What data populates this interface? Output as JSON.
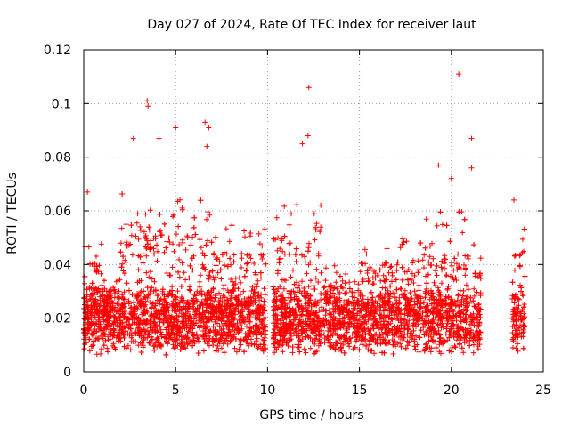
{
  "chart_data": {
    "type": "scatter",
    "title": "Day 027 of 2024, Rate Of TEC Index for receiver laut",
    "xlabel": "GPS time / hours",
    "ylabel": "ROTI / TECUs",
    "xlim": [
      0,
      25
    ],
    "ylim": [
      0,
      0.12
    ],
    "x_ticks": [
      0,
      5,
      10,
      15,
      20,
      25
    ],
    "x_tick_labels": [
      "0",
      "5",
      "10",
      "15",
      "20",
      "25"
    ],
    "y_ticks": [
      0,
      0.02,
      0.04,
      0.06,
      0.08,
      0.1,
      0.12
    ],
    "y_tick_labels": [
      "0",
      "0.02",
      "0.04",
      "0.06",
      "0.08",
      "0.1",
      "0.12"
    ],
    "grid": true,
    "marker": "+",
    "series_color": "#ff0000",
    "data_coverage": [
      [
        0.0,
        9.9
      ],
      [
        10.3,
        21.6
      ],
      [
        23.3,
        24.0
      ]
    ],
    "outliers": [
      {
        "x": 3.45,
        "y": 0.101
      },
      {
        "x": 3.5,
        "y": 0.099
      },
      {
        "x": 5.0,
        "y": 0.091
      },
      {
        "x": 6.6,
        "y": 0.093
      },
      {
        "x": 6.8,
        "y": 0.091
      },
      {
        "x": 12.25,
        "y": 0.106
      },
      {
        "x": 20.4,
        "y": 0.111
      },
      {
        "x": 2.7,
        "y": 0.087
      },
      {
        "x": 4.1,
        "y": 0.087
      },
      {
        "x": 12.2,
        "y": 0.088
      },
      {
        "x": 11.9,
        "y": 0.085
      },
      {
        "x": 21.1,
        "y": 0.087
      },
      {
        "x": 0.2,
        "y": 0.067
      },
      {
        "x": 19.3,
        "y": 0.077
      },
      {
        "x": 21.1,
        "y": 0.076
      },
      {
        "x": 23.4,
        "y": 0.064
      },
      {
        "x": 20.0,
        "y": 0.072
      },
      {
        "x": 6.7,
        "y": 0.084
      }
    ]
  }
}
